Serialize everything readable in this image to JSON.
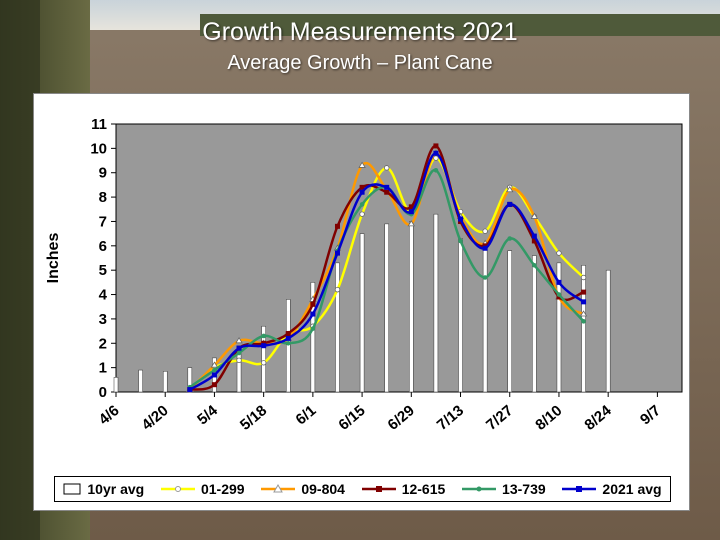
{
  "slide": {
    "title": "Growth Measurements 2021",
    "subtitle": "Average Growth – Plant Cane"
  },
  "colors": {
    "plot_bg": "#999999",
    "bar_fill": "#ffffff",
    "01-299": "#ffff00",
    "09-804": "#ff9900",
    "12-615": "#800000",
    "13-739": "#339966",
    "2021 avg": "#0000cc"
  },
  "chart_data": {
    "type": "bar+line",
    "ylabel": "Inches",
    "xlabel": "",
    "ylim": [
      0,
      11
    ],
    "yticks": [
      "0",
      "1",
      "2",
      "3",
      "4",
      "5",
      "6",
      "7",
      "8",
      "9",
      "10",
      "11"
    ],
    "x_tick_labels": [
      "4/6",
      "4/20",
      "5/4",
      "5/18",
      "6/1",
      "6/15",
      "6/29",
      "7/13",
      "7/27",
      "8/10",
      "8/24",
      "9/7"
    ],
    "legend_position": "bottom",
    "grid": false,
    "bar_series": {
      "name": "10yr avg",
      "x": [
        0,
        0.5,
        1,
        1.5,
        2,
        2.5,
        3,
        3.5,
        4,
        4.5,
        5,
        5.5,
        6,
        6.5,
        7,
        7.5,
        8,
        8.5,
        9,
        9.5,
        10,
        10.5,
        11,
        11.5
      ],
      "values": [
        0.6,
        0.9,
        0.85,
        1.0,
        1.4,
        1.7,
        2.7,
        3.8,
        4.5,
        5.3,
        6.5,
        6.9,
        7.0,
        7.3,
        6.3,
        5.9,
        5.8,
        5.6,
        5.3,
        5.2,
        5.0,
        0.0,
        0.0,
        0.0
      ]
    },
    "series": [
      {
        "name": "01-299",
        "x": [
          1.5,
          2,
          2.5,
          3,
          3.5,
          4,
          4.5,
          5,
          5.5,
          6,
          6.5,
          7,
          7.5,
          8,
          8.5,
          9,
          9.5
        ],
        "values": [
          0.1,
          1.0,
          1.3,
          1.2,
          2.4,
          2.7,
          4.2,
          7.3,
          9.2,
          7.4,
          9.6,
          7.4,
          6.6,
          8.4,
          7.2,
          5.7,
          4.7
        ]
      },
      {
        "name": "09-804",
        "x": [
          1.5,
          2,
          2.5,
          3,
          3.5,
          4,
          4.5,
          5,
          5.5,
          6,
          6.5,
          7,
          7.5,
          8,
          8.5,
          9,
          9.5
        ],
        "values": [
          0.1,
          1.1,
          2.1,
          2.0,
          2.2,
          3.8,
          5.9,
          9.3,
          8.3,
          6.9,
          9.8,
          7.2,
          6.1,
          8.3,
          7.2,
          3.9,
          3.2
        ]
      },
      {
        "name": "12-615",
        "x": [
          1.5,
          2,
          2.5,
          3,
          3.5,
          4,
          4.5,
          5,
          5.5,
          6,
          6.5,
          7,
          7.5,
          8,
          8.5,
          9,
          9.5
        ],
        "values": [
          0.1,
          0.3,
          1.8,
          2.0,
          2.4,
          3.6,
          6.8,
          8.4,
          8.2,
          7.6,
          10.1,
          7.0,
          6.0,
          7.7,
          6.2,
          3.9,
          4.1
        ]
      },
      {
        "name": "13-739",
        "x": [
          1.5,
          2,
          2.5,
          3,
          3.5,
          4,
          4.5,
          5,
          5.5,
          6,
          6.5,
          7,
          7.5,
          8,
          8.5,
          9,
          9.5
        ],
        "values": [
          0.2,
          0.9,
          1.6,
          2.3,
          2.0,
          2.6,
          5.8,
          7.7,
          8.4,
          7.3,
          9.1,
          6.2,
          4.7,
          6.3,
          5.2,
          4.0,
          2.9
        ]
      },
      {
        "name": "2021 avg",
        "x": [
          1.5,
          2,
          2.5,
          3,
          3.5,
          4,
          4.5,
          5,
          5.5,
          6,
          6.5,
          7,
          7.5,
          8,
          8.5,
          9,
          9.5
        ],
        "values": [
          0.1,
          0.7,
          1.8,
          1.9,
          2.2,
          3.2,
          5.7,
          8.2,
          8.4,
          7.4,
          9.8,
          7.1,
          5.9,
          7.7,
          6.4,
          4.5,
          3.7
        ]
      }
    ]
  }
}
